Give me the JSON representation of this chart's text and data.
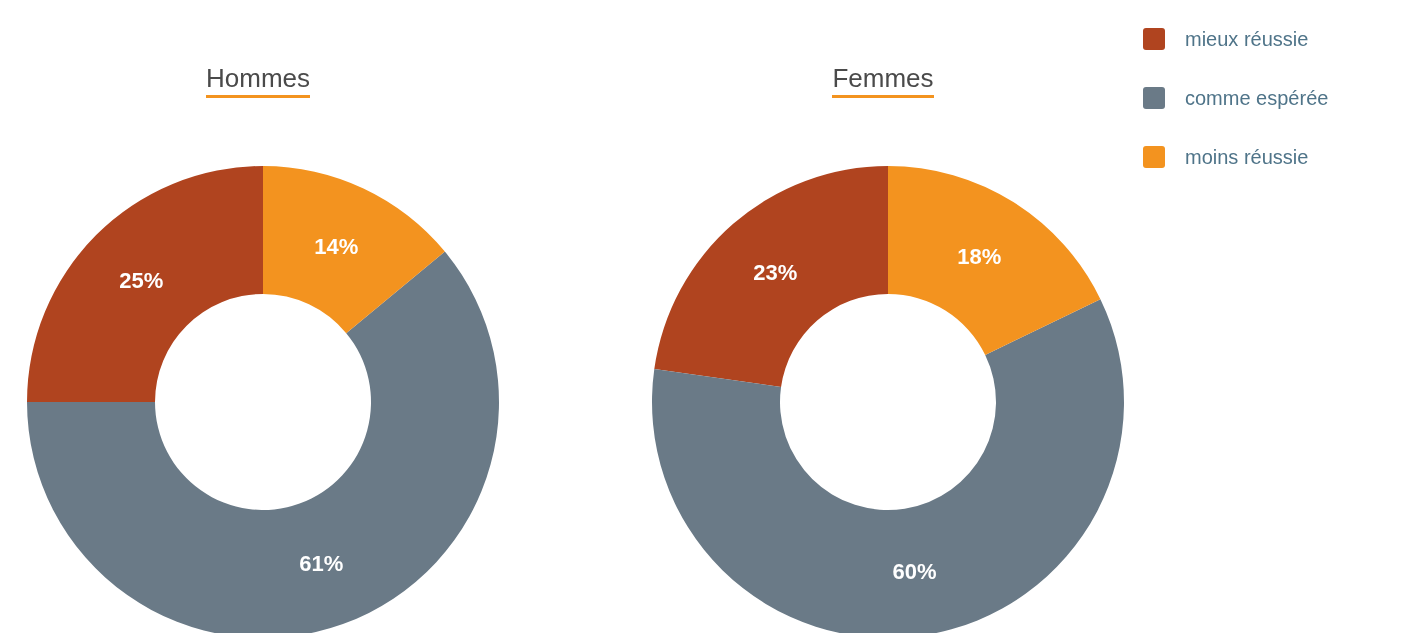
{
  "chart_data": [
    {
      "type": "donut",
      "title": "Hommes",
      "categories": [
        "mieux réussie",
        "comme espérée",
        "moins réussie"
      ],
      "values": [
        25,
        61,
        14
      ],
      "colors": [
        "#b0441f",
        "#6a7a87",
        "#f3931f"
      ],
      "value_labels": [
        "25%",
        "61%",
        "14%"
      ],
      "legend": "top right"
    },
    {
      "type": "donut",
      "title": "Femmes",
      "categories": [
        null,
        null,
        null
      ],
      "values": [
        23,
        60,
        18
      ],
      "colors": [
        "#b0441f",
        "#6a7a87",
        "#f3931f"
      ],
      "value_labels": [
        "23%",
        "60%",
        "18%"
      ],
      "legend": false
    }
  ]
}
